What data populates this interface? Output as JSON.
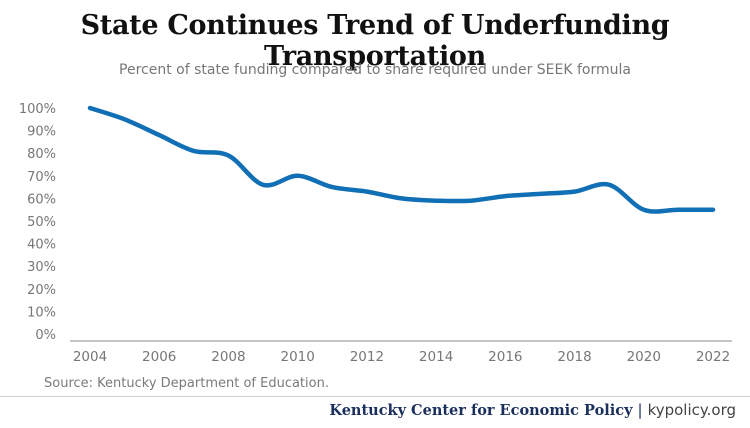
{
  "chart_data": {
    "type": "line",
    "title": "State Continues Trend of Underfunding Transportation",
    "subtitle": "Percent of state funding compared to share required under SEEK formula",
    "x": [
      2004,
      2005,
      2006,
      2007,
      2008,
      2009,
      2010,
      2011,
      2012,
      2013,
      2014,
      2015,
      2016,
      2017,
      2018,
      2019,
      2020,
      2021,
      2022
    ],
    "series": [
      {
        "values": [
          100,
          95,
          88,
          81,
          79,
          66,
          70,
          65,
          63,
          60,
          59,
          59,
          61,
          62,
          63,
          66,
          55,
          55,
          55
        ]
      }
    ],
    "x_ticks": [
      2004,
      2006,
      2008,
      2010,
      2012,
      2014,
      2016,
      2018,
      2020,
      2022
    ],
    "y_ticks": [
      0,
      10,
      20,
      30,
      40,
      50,
      60,
      70,
      80,
      90,
      100
    ],
    "y_tick_labels": [
      "0%",
      "10%",
      "20%",
      "30%",
      "40%",
      "50%",
      "60%",
      "70%",
      "80%",
      "90%",
      "100%"
    ],
    "ylim": [
      0,
      100
    ],
    "xlim": [
      2004,
      2022
    ],
    "grid": false,
    "xlabel": "",
    "ylabel": ""
  },
  "colors": {
    "line": "#1170b5",
    "axis": "#8a8a8a",
    "tick_text": "#777777"
  },
  "source": "Source: Kentucky Department of Education.",
  "footer": {
    "org": "Kentucky Center for Economic Policy",
    "separator": "|",
    "url": "kypolicy.org"
  }
}
